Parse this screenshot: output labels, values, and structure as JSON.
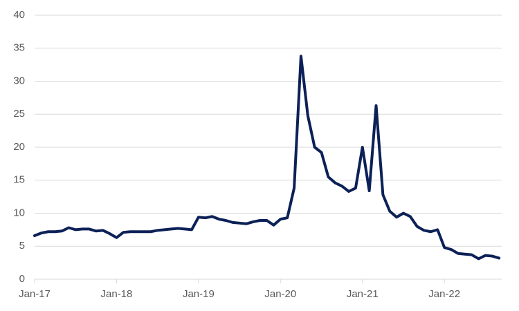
{
  "chart_data": {
    "type": "line",
    "categories": [
      "Jan-17",
      null,
      null,
      null,
      null,
      null,
      null,
      null,
      null,
      null,
      null,
      null,
      "Jan-18",
      null,
      null,
      null,
      null,
      null,
      null,
      null,
      null,
      null,
      null,
      null,
      "Jan-19",
      null,
      null,
      null,
      null,
      null,
      null,
      null,
      null,
      null,
      null,
      null,
      "Jan-20",
      null,
      null,
      null,
      null,
      null,
      null,
      null,
      null,
      null,
      null,
      null,
      "Jan-21",
      null,
      null,
      null,
      null,
      null,
      null,
      null,
      null,
      null,
      null,
      null,
      "Jan-22",
      null,
      null,
      null,
      null,
      null,
      null,
      null,
      null
    ],
    "values": [
      6.6,
      7.0,
      7.2,
      7.2,
      7.3,
      7.8,
      7.5,
      7.6,
      7.6,
      7.3,
      7.4,
      6.9,
      6.3,
      7.1,
      7.2,
      7.2,
      7.2,
      7.2,
      7.4,
      7.5,
      7.6,
      7.7,
      7.6,
      7.5,
      9.4,
      9.3,
      9.5,
      9.1,
      8.9,
      8.6,
      8.5,
      8.4,
      8.7,
      8.9,
      8.9,
      8.2,
      9.1,
      9.3,
      13.8,
      33.8,
      24.8,
      20.0,
      19.2,
      15.5,
      14.6,
      14.1,
      13.3,
      13.8,
      20.0,
      13.4,
      26.3,
      12.8,
      10.3,
      9.4,
      10.0,
      9.5,
      8.0,
      7.4,
      7.2,
      7.5,
      4.8,
      4.5,
      3.9,
      3.8,
      3.7,
      3.1,
      3.6,
      3.5,
      3.2
    ],
    "color": "#0c2157",
    "ylim": [
      0,
      40
    ],
    "yticks": [
      0,
      5,
      10,
      15,
      20,
      25,
      30,
      35,
      40
    ],
    "grid": true
  }
}
